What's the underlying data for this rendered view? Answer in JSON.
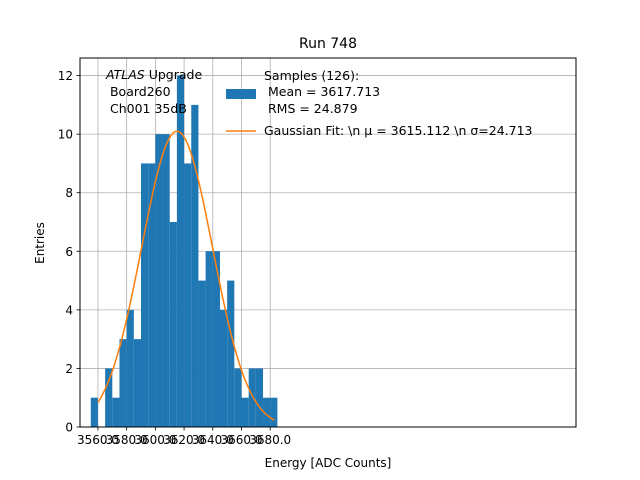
{
  "chart_data": {
    "type": "bar",
    "title": "Run 748",
    "xlabel": "Energy [ADC Counts]",
    "ylabel": "Entries",
    "xlim": [
      3547.5,
      3893.0
    ],
    "ylim": [
      0,
      12.6
    ],
    "grid": true,
    "xticks": [
      "3560.0",
      "3580.0",
      "3600.0",
      "3620.0",
      "3640.0",
      "3660.0",
      "3680.0"
    ],
    "yticks": [
      "0",
      "2",
      "4",
      "6",
      "8",
      "10",
      "12"
    ],
    "bin_edges": [
      3555,
      3560,
      3565,
      3570,
      3575,
      3580,
      3585,
      3590,
      3595,
      3600,
      3605,
      3610,
      3615,
      3620,
      3625,
      3630,
      3635,
      3640,
      3645,
      3650,
      3655,
      3660,
      3665,
      3670,
      3675,
      3680,
      3685
    ],
    "histogram": {
      "name": "Samples",
      "counts": [
        1,
        0,
        2,
        1,
        3,
        4,
        3,
        9,
        9,
        10,
        10,
        7,
        12,
        9,
        11,
        5,
        6,
        6,
        4,
        5,
        2,
        1,
        2,
        2,
        1,
        1
      ],
      "color": "#1f77b4"
    },
    "fit": {
      "name": "Gaussian Fit",
      "mu": 3615.112,
      "sigma": 24.713,
      "amplitude": 10.1,
      "x_range": [
        3560,
        3683
      ],
      "color": "#ff7f0e"
    },
    "legend": {
      "placement": "top-center",
      "hist_lines": [
        "Samples (126):",
        " Mean = 3617.713",
        " RMS = 24.879"
      ],
      "fit_label": "Gaussian Fit: \\n μ = 3615.112 \\n σ=24.713"
    },
    "annotation": {
      "italic": "ATLAS",
      "rest": " Upgrade",
      "lines": [
        " Board260",
        " Ch001 35dB"
      ]
    }
  }
}
